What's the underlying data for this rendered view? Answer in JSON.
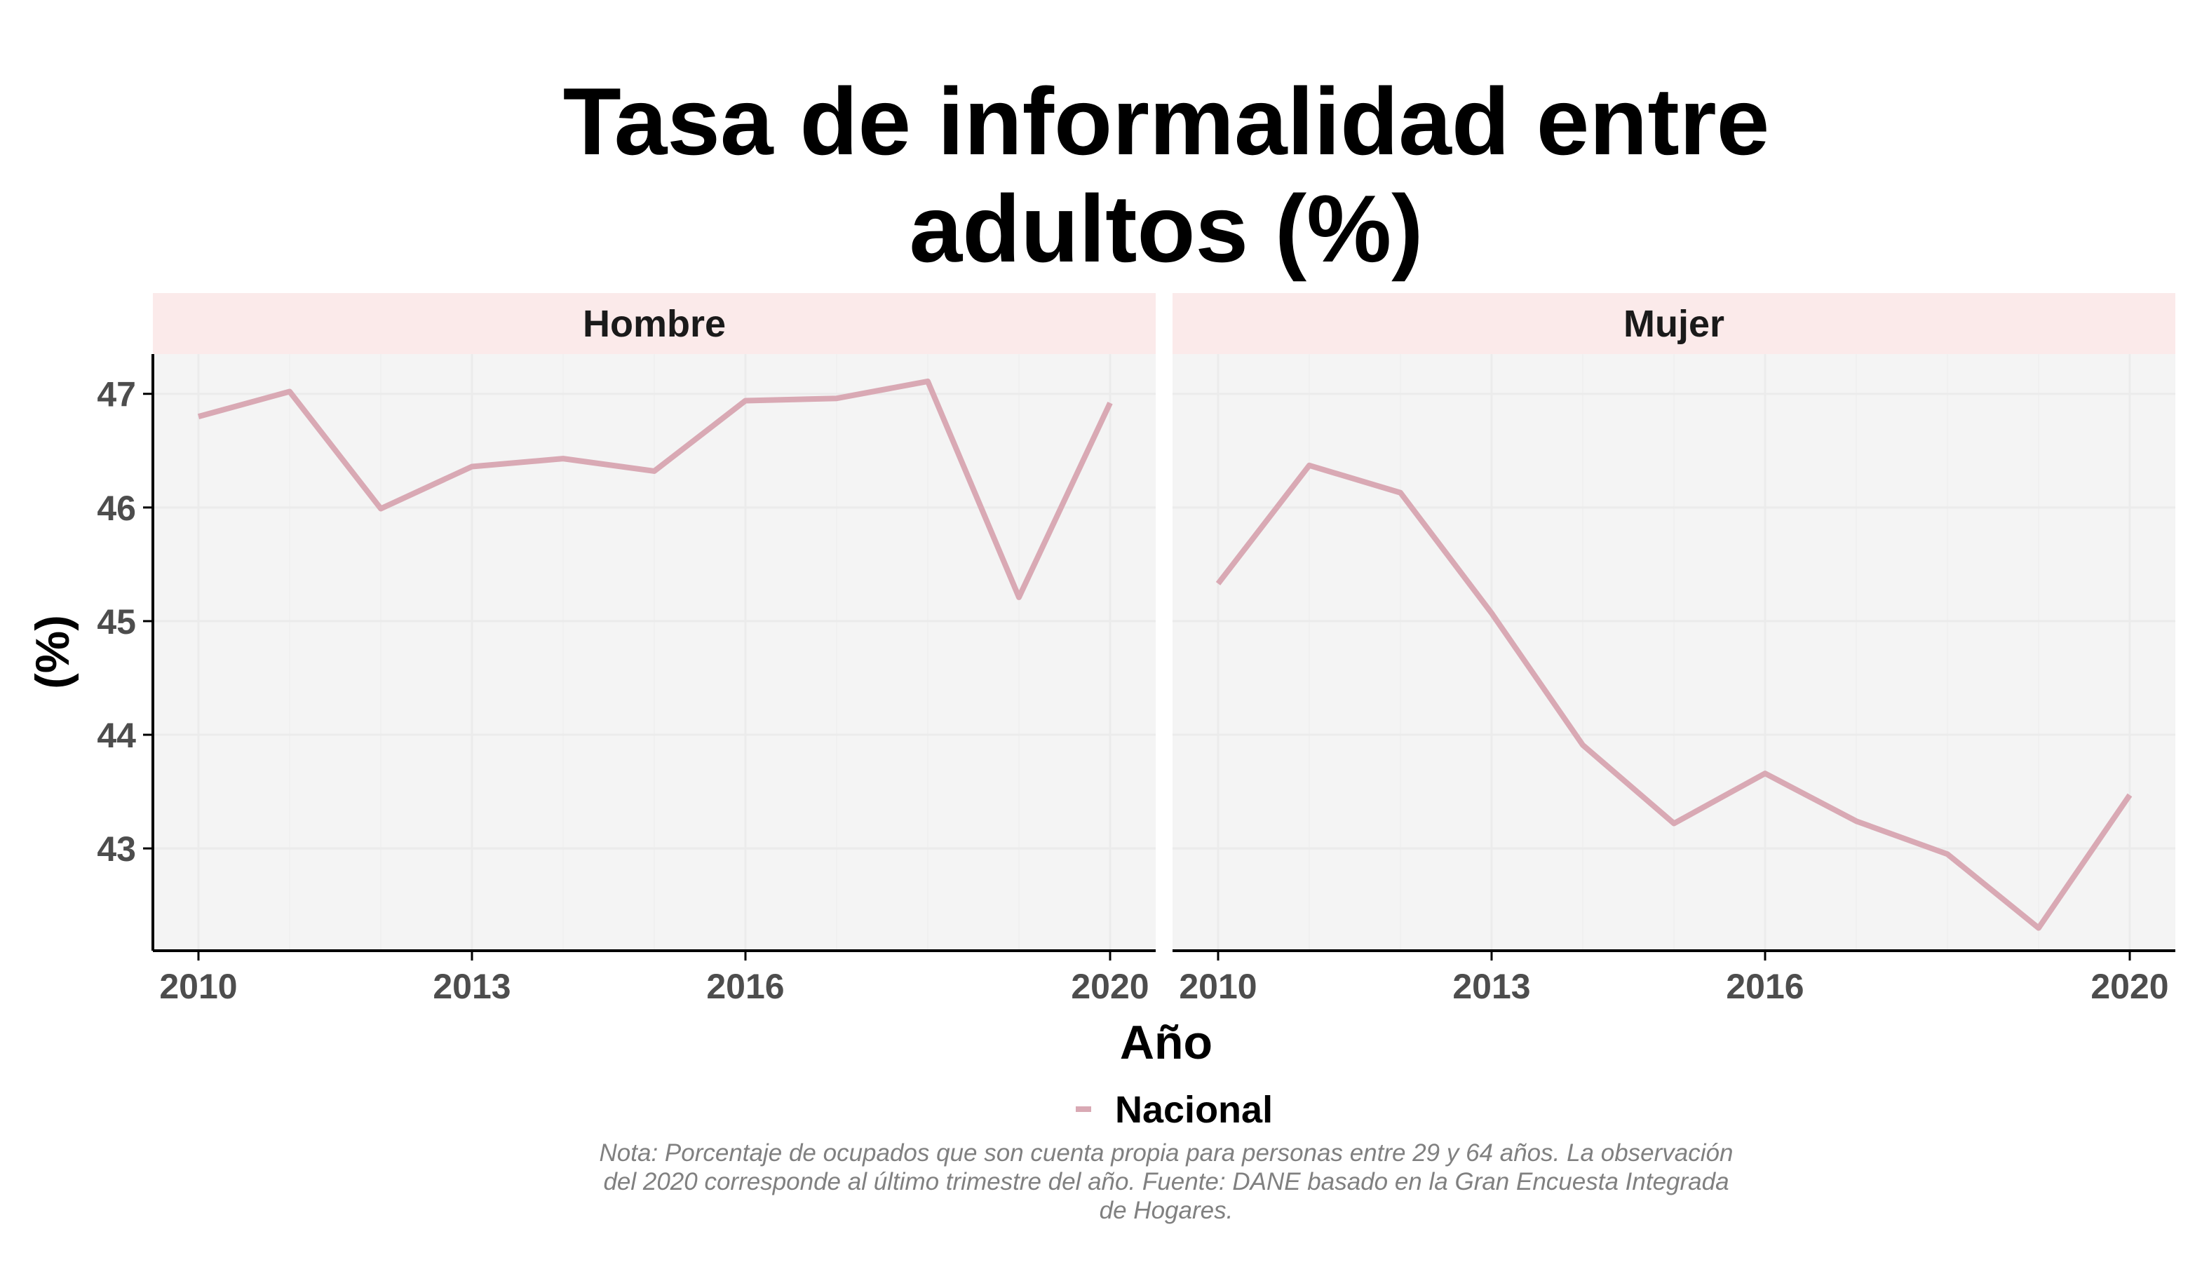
{
  "chart_data": {
    "type": "line",
    "title": [
      "Tasa de informalidad entre",
      "adultos (%)"
    ],
    "xlabel": "Año",
    "ylabel": "(%)",
    "x_ticks": [
      2010,
      2013,
      2016,
      2020
    ],
    "y_ticks": [
      43,
      44,
      45,
      46,
      47
    ],
    "xlim": [
      2009.5,
      2020.5
    ],
    "ylim": [
      42.1,
      47.35
    ],
    "grid": true,
    "legend_position": "bottom",
    "legend": [
      {
        "label": "Nacional",
        "color": "#d9a9b4"
      }
    ],
    "caption": [
      "Nota: Porcentaje de ocupados que son cuenta propia para personas entre 29 y 64 años. La observación",
      "del 2020 corresponde al último trimestre del año. Fuente: DANE basado en la Gran Encuesta Integrada",
      "de Hogares."
    ],
    "colors": {
      "line": "#d9a9b4",
      "panel": "#f4f4f4",
      "strip": "#fbeaea",
      "grid": "#ebebeb",
      "axis": "#000000"
    },
    "panels": [
      {
        "name": "Hombre",
        "series": [
          {
            "name": "Nacional",
            "x": [
              2010,
              2011,
              2012,
              2013,
              2014,
              2015,
              2016,
              2017,
              2018,
              2019,
              2020
            ],
            "values": [
              46.8,
              47.02,
              45.99,
              46.36,
              46.43,
              46.32,
              46.94,
              46.96,
              47.11,
              45.21,
              46.92
            ]
          }
        ]
      },
      {
        "name": "Mujer",
        "series": [
          {
            "name": "Nacional",
            "x": [
              2010,
              2011,
              2012,
              2013,
              2014,
              2015,
              2016,
              2017,
              2018,
              2019,
              2020
            ],
            "values": [
              45.33,
              46.37,
              46.13,
              45.07,
              43.91,
              43.22,
              43.66,
              43.24,
              42.95,
              42.3,
              43.47
            ]
          }
        ]
      }
    ]
  }
}
